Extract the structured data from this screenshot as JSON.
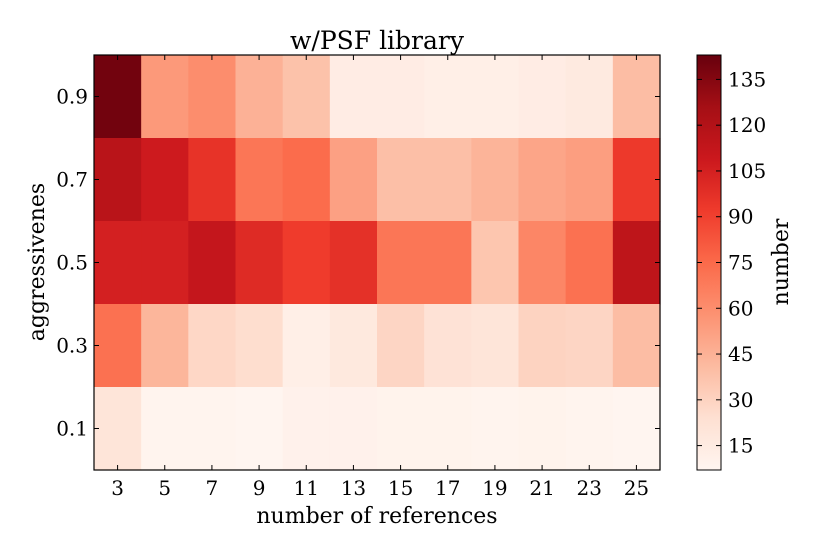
{
  "chart_data": {
    "type": "heatmap",
    "title": "w/PSF library",
    "xlabel": "number of references",
    "ylabel": "aggressivenes",
    "x_ticks": [
      "3",
      "5",
      "7",
      "9",
      "11",
      "13",
      "15",
      "17",
      "19",
      "21",
      "23",
      "25"
    ],
    "y_ticks": [
      "0.9",
      "0.7",
      "0.5",
      "0.3",
      "0.1"
    ],
    "colorbar": {
      "label": "number",
      "min": 7,
      "max": 143,
      "ticks": [
        "15",
        "30",
        "45",
        "60",
        "75",
        "90",
        "105",
        "120",
        "135"
      ],
      "colormap": "Reds"
    },
    "rows": [
      {
        "y": "0.9",
        "values": [
          140,
          55,
          60,
          45,
          38,
          14,
          14,
          12,
          12,
          14,
          16,
          40
        ]
      },
      {
        "y": "0.7",
        "values": [
          117,
          108,
          96,
          70,
          74,
          52,
          39,
          39,
          44,
          50,
          53,
          93
        ]
      },
      {
        "y": "0.5",
        "values": [
          105,
          105,
          112,
          100,
          92,
          97,
          70,
          70,
          36,
          63,
          72,
          115
        ]
      },
      {
        "y": "0.3",
        "values": [
          72,
          43,
          28,
          25,
          12,
          17,
          29,
          22,
          20,
          30,
          29,
          40
        ]
      },
      {
        "y": "0.1",
        "values": [
          20,
          8,
          8,
          5,
          10,
          10,
          9,
          9,
          8,
          9,
          8,
          7
        ]
      }
    ]
  }
}
